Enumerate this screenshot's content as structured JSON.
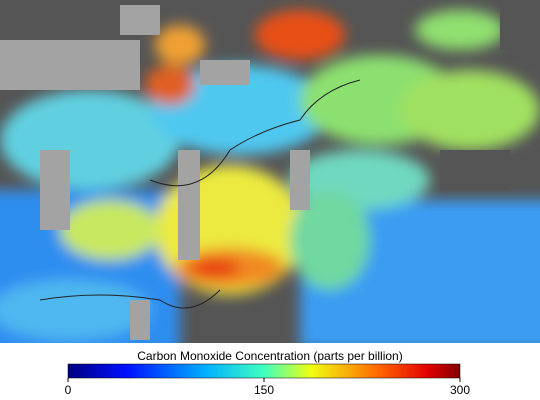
{
  "colorbar": {
    "title": "Carbon Monoxide Concentration (parts per billion)",
    "range": [
      0,
      300
    ],
    "ticks": [
      0,
      150,
      300
    ]
  }
}
